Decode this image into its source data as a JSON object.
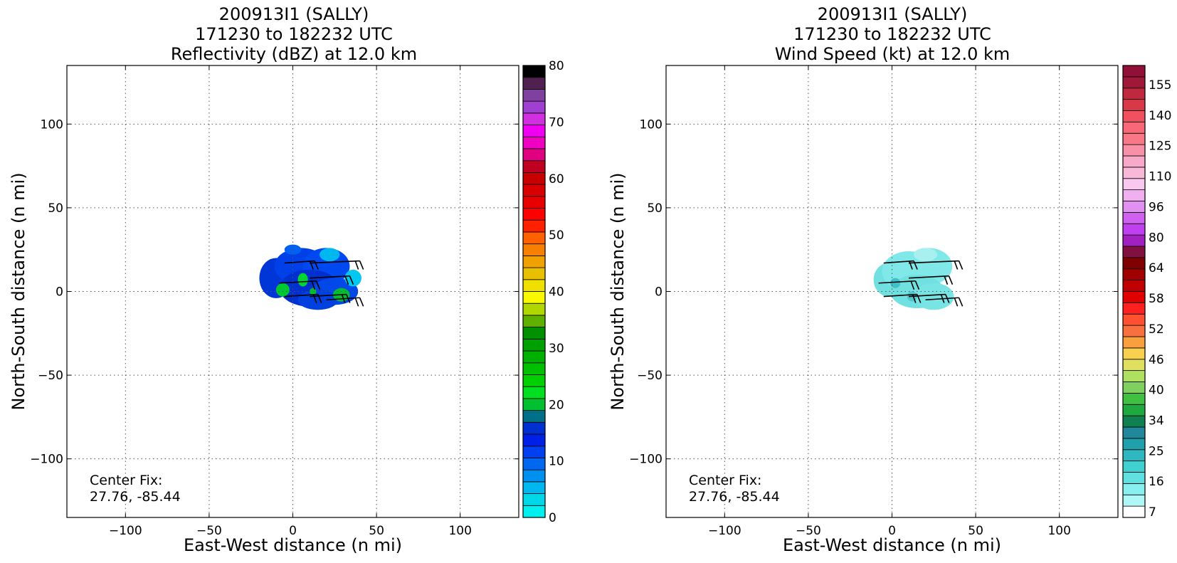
{
  "chart_data": [
    {
      "type": "heatmap",
      "title_lines": [
        "200913I1 (SALLY)",
        "171230 to 182232 UTC",
        "Reflectivity (dBZ) at 12.0 km"
      ],
      "xlabel": "East-West distance (n mi)",
      "ylabel": "North-South distance (n mi)",
      "xlim": [
        -135,
        135
      ],
      "ylim": [
        -135,
        135
      ],
      "xticks": [
        -100,
        -50,
        0,
        50,
        100
      ],
      "yticks": [
        -100,
        -50,
        0,
        50,
        100
      ],
      "xtick_labels": [
        "−100",
        "−50",
        "0",
        "50",
        "100"
      ],
      "ytick_labels": [
        "−100",
        "−50",
        "0",
        "50",
        "100"
      ],
      "grid": true,
      "annotation_lines": [
        "Center Fix:",
        "27.76, -85.44"
      ],
      "colorbar": {
        "min": 0,
        "max": 80,
        "ticks": [
          "0",
          "10",
          "20",
          "30",
          "40",
          "50",
          "60",
          "70",
          "80"
        ],
        "colors": [
          "#00f0f0",
          "#00d8e8",
          "#00b8f0",
          "#0090f0",
          "#0068f0",
          "#0040f0",
          "#0020e8",
          "#0030d0",
          "#007088",
          "#00c030",
          "#00e020",
          "#00d000",
          "#00c000",
          "#00b000",
          "#00a000",
          "#009000",
          "#60b000",
          "#b0d800",
          "#f8f800",
          "#f0e000",
          "#e8c000",
          "#f0a000",
          "#f88000",
          "#ff6000",
          "#ff2000",
          "#ff0000",
          "#e80000",
          "#d80000",
          "#c80000",
          "#c00020",
          "#e00080",
          "#f000c0",
          "#f000f0",
          "#d030e0",
          "#a040d0",
          "#8040a0",
          "#502050",
          "#000000"
        ]
      },
      "field": {
        "blobs": [
          {
            "x": -10,
            "y": 8,
            "rx": 10,
            "ry": 12,
            "color": "#0035d8"
          },
          {
            "x": 5,
            "y": 15,
            "rx": 16,
            "ry": 11,
            "color": "#0040e8"
          },
          {
            "x": 20,
            "y": 15,
            "rx": 14,
            "ry": 11,
            "color": "#0048f0"
          },
          {
            "x": 10,
            "y": 2,
            "rx": 18,
            "ry": 11,
            "color": "#0030d0"
          },
          {
            "x": 25,
            "y": 0,
            "rx": 14,
            "ry": 8,
            "color": "#0048e8"
          },
          {
            "x": 15,
            "y": -5,
            "rx": 12,
            "ry": 6,
            "color": "#0040e0"
          },
          {
            "x": 22,
            "y": 22,
            "rx": 6,
            "ry": 4,
            "color": "#00b8f0"
          },
          {
            "x": 36,
            "y": 8,
            "rx": 5,
            "ry": 5,
            "color": "#00c8f0"
          },
          {
            "x": 0,
            "y": 25,
            "rx": 5,
            "ry": 3,
            "color": "#0060f0"
          },
          {
            "x": -6,
            "y": 1,
            "rx": 4,
            "ry": 4,
            "color": "#00c830"
          },
          {
            "x": 6,
            "y": 7,
            "rx": 3,
            "ry": 4,
            "color": "#00d830"
          },
          {
            "x": 29,
            "y": -2,
            "rx": 5,
            "ry": 4,
            "color": "#00c030"
          },
          {
            "x": 12,
            "y": 0,
            "rx": 2,
            "ry": 2,
            "color": "#00c030"
          }
        ],
        "barbs": [
          {
            "x": -5,
            "y": 17,
            "len": 18
          },
          {
            "x": 10,
            "y": 17,
            "len": 30
          },
          {
            "x": -8,
            "y": 5,
            "len": 22
          },
          {
            "x": 10,
            "y": 8,
            "len": 24
          },
          {
            "x": -5,
            "y": -3,
            "len": 20
          },
          {
            "x": 10,
            "y": -3,
            "len": 22
          },
          {
            "x": 20,
            "y": -5,
            "len": 20
          }
        ]
      }
    },
    {
      "type": "heatmap",
      "title_lines": [
        "200913I1 (SALLY)",
        "171230 to 182232 UTC",
        "Wind Speed (kt) at 12.0 km"
      ],
      "xlabel": "East-West distance (n mi)",
      "ylabel": "North-South distance (n mi)",
      "xlim": [
        -135,
        135
      ],
      "ylim": [
        -135,
        135
      ],
      "xticks": [
        -100,
        -50,
        0,
        50,
        100
      ],
      "yticks": [
        -100,
        -50,
        0,
        50,
        100
      ],
      "xtick_labels": [
        "−100",
        "−50",
        "0",
        "50",
        "100"
      ],
      "ytick_labels": [
        "−100",
        "−50",
        "0",
        "50",
        "100"
      ],
      "grid": true,
      "annotation_lines": [
        "Center Fix:",
        "27.76, -85.44"
      ],
      "colorbar": {
        "ticks": [
          "7",
          "16",
          "25",
          "34",
          "40",
          "46",
          "52",
          "58",
          "64",
          "80",
          "96",
          "110",
          "125",
          "140",
          "155"
        ],
        "colors": [
          "#ffffff",
          "#b0f8f8",
          "#88f0f0",
          "#60e0e0",
          "#40d0d0",
          "#30b8c0",
          "#20a0a8",
          "#20889a",
          "#108050",
          "#20a840",
          "#40c040",
          "#80d060",
          "#b0e060",
          "#e0e060",
          "#f8d050",
          "#f8a040",
          "#f87040",
          "#ff5030",
          "#ff2020",
          "#e00000",
          "#c00000",
          "#a00000",
          "#800000",
          "#801040",
          "#a020c0",
          "#c040f0",
          "#d060f0",
          "#e090f0",
          "#f0b0f0",
          "#f8c8f0",
          "#f8b8d8",
          "#f8a8c8",
          "#f890a8",
          "#f87888",
          "#f86878",
          "#f05060",
          "#d83848",
          "#c02840",
          "#a01838",
          "#901038"
        ]
      },
      "field": {
        "blobs": [
          {
            "x": -2,
            "y": 7,
            "rx": 9,
            "ry": 10,
            "color": "#70e0e0"
          },
          {
            "x": 10,
            "y": 12,
            "rx": 16,
            "ry": 12,
            "color": "#80e8e8"
          },
          {
            "x": 22,
            "y": 15,
            "rx": 14,
            "ry": 11,
            "color": "#80e8e8"
          },
          {
            "x": 15,
            "y": 0,
            "rx": 16,
            "ry": 10,
            "color": "#70e0e0"
          },
          {
            "x": 25,
            "y": -3,
            "rx": 12,
            "ry": 8,
            "color": "#78e4e4"
          },
          {
            "x": 20,
            "y": 22,
            "rx": 7,
            "ry": 4,
            "color": "#a8f0f0"
          },
          {
            "x": 2,
            "y": 5,
            "rx": 3,
            "ry": 3,
            "color": "#40c0c8"
          },
          {
            "x": 12,
            "y": -3,
            "rx": 3,
            "ry": 3,
            "color": "#50c8d0"
          }
        ],
        "barbs": [
          {
            "x": -5,
            "y": 17,
            "len": 18
          },
          {
            "x": 10,
            "y": 17,
            "len": 30
          },
          {
            "x": -8,
            "y": 5,
            "len": 22
          },
          {
            "x": 10,
            "y": 8,
            "len": 24
          },
          {
            "x": -5,
            "y": -3,
            "len": 20
          },
          {
            "x": 10,
            "y": -3,
            "len": 22
          },
          {
            "x": 20,
            "y": -5,
            "len": 20
          }
        ]
      }
    }
  ]
}
